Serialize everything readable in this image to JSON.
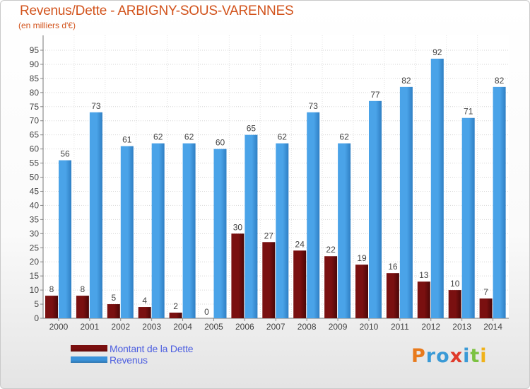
{
  "title": "Revenus/Dette - ARBIGNY-SOUS-VARENNES",
  "subtitle": "(en milliers d'€)",
  "logo": {
    "letters": [
      "P",
      "r",
      "o",
      "x",
      "i",
      "t",
      "i"
    ],
    "colors": [
      "#e87a1c",
      "#3a9ad6",
      "#3a9ad6",
      "#e03a2a",
      "#3a9ad6",
      "#7cc242",
      "#f0b21a"
    ]
  },
  "legend": [
    {
      "label": "Montant de la Dette",
      "color": "#7a0f0f"
    },
    {
      "label": "Revenus",
      "color": "#3b93db"
    }
  ],
  "chart_data": {
    "type": "bar",
    "categories": [
      "2000",
      "2001",
      "2002",
      "2003",
      "2004",
      "2005",
      "2006",
      "2007",
      "2008",
      "2009",
      "2010",
      "2011",
      "2012",
      "2013",
      "2014"
    ],
    "series": [
      {
        "name": "Montant de la Dette",
        "color": "#7a0f0f",
        "values": [
          8,
          8,
          5,
          4,
          2,
          0,
          30,
          27,
          24,
          22,
          19,
          16,
          13,
          10,
          7
        ]
      },
      {
        "name": "Revenus",
        "color": "#3b93db",
        "values": [
          56,
          73,
          61,
          62,
          62,
          60,
          65,
          62,
          73,
          62,
          77,
          82,
          92,
          71,
          82
        ]
      }
    ],
    "yticks": [
      0,
      5,
      10,
      15,
      20,
      25,
      30,
      35,
      40,
      45,
      50,
      55,
      60,
      65,
      70,
      75,
      80,
      85,
      90,
      95
    ],
    "ylim": [
      0,
      95
    ],
    "grid": true,
    "legend_position": "bottom-left"
  }
}
